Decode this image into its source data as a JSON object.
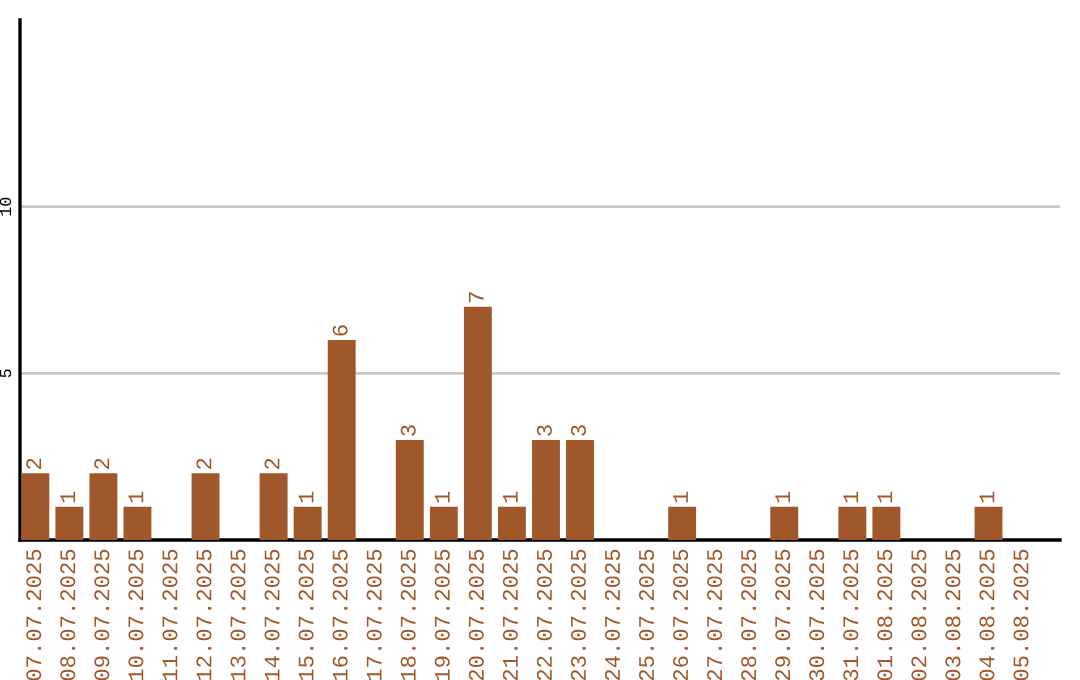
{
  "chart_data": {
    "type": "bar",
    "categories": [
      "07.07.2025",
      "08.07.2025",
      "09.07.2025",
      "10.07.2025",
      "11.07.2025",
      "12.07.2025",
      "13.07.2025",
      "14.07.2025",
      "15.07.2025",
      "16.07.2025",
      "17.07.2025",
      "18.07.2025",
      "19.07.2025",
      "20.07.2025",
      "21.07.2025",
      "22.07.2025",
      "23.07.2025",
      "24.07.2025",
      "25.07.2025",
      "26.07.2025",
      "27.07.2025",
      "28.07.2025",
      "29.07.2025",
      "30.07.2025",
      "31.07.2025",
      "01.08.2025",
      "02.08.2025",
      "03.08.2025",
      "04.08.2025",
      "05.08.2025"
    ],
    "values": [
      2,
      1,
      2,
      1,
      0,
      2,
      0,
      2,
      1,
      6,
      0,
      3,
      1,
      7,
      1,
      3,
      3,
      0,
      0,
      1,
      0,
      0,
      1,
      0,
      1,
      1,
      0,
      0,
      1,
      0
    ],
    "value_labels": [
      "2",
      "1",
      "2",
      "1",
      null,
      "2",
      null,
      "2",
      "1",
      "6",
      null,
      "3",
      "1",
      "7",
      "1",
      "3",
      "3",
      null,
      null,
      "1",
      null,
      null,
      "1",
      null,
      "1",
      "1",
      null,
      null,
      "1",
      null
    ],
    "color": "#a0582a",
    "ylim": [
      0,
      15.6
    ],
    "yticks": [
      5,
      10
    ],
    "grid": "y"
  }
}
